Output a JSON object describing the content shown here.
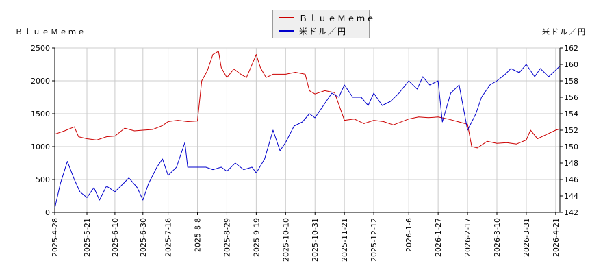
{
  "legend": {
    "series1": "ＢｌｕｅＭｅｍｅ",
    "series2": "米ドル／円"
  },
  "left_axis_title": "ＢｌｕｅＭｅｍｅ",
  "right_axis_title": "米ドル／円",
  "colors": {
    "series1": "#cc0000",
    "series2": "#0000cc",
    "grid": "#cccccc"
  },
  "chart_data": {
    "type": "line",
    "title": "",
    "left_axis": {
      "label": "ＢｌｕｅＭｅｍｅ",
      "ylim": [
        0,
        2500
      ],
      "ticks": [
        "0",
        "500",
        "1000",
        "1500",
        "2000",
        "2500"
      ]
    },
    "right_axis": {
      "label": "米ドル／円",
      "ylim": [
        142,
        162
      ],
      "ticks": [
        "142",
        "144",
        "146",
        "148",
        "150",
        "152",
        "154",
        "156",
        "158",
        "160",
        "162"
      ]
    },
    "x_axis": {
      "range": [
        "2025-4-28",
        "2026-4-24"
      ],
      "ticks": [
        "2025-4-28",
        "2025-5-21",
        "2025-6-10",
        "2025-6-30",
        "2025-7-18",
        "2025-8-8",
        "2025-8-29",
        "2025-9-19",
        "2025-10-10",
        "2025-10-31",
        "2025-11-21",
        "2025-12-12",
        "2026-1-6",
        "2026-1-27",
        "2026-2-17",
        "2026-3-10",
        "2026-3-31",
        "2026-4-21"
      ]
    },
    "grid": true,
    "legend_position": "top-center",
    "series": [
      {
        "name": "ＢｌｕｅＭｅｍｅ",
        "axis": "left",
        "x": [
          "2025-4-28",
          "2025-5-5",
          "2025-5-12",
          "2025-5-15",
          "2025-5-21",
          "2025-5-28",
          "2025-6-4",
          "2025-6-10",
          "2025-6-17",
          "2025-6-24",
          "2025-6-30",
          "2025-7-7",
          "2025-7-14",
          "2025-7-18",
          "2025-7-25",
          "2025-8-1",
          "2025-8-8",
          "2025-8-11",
          "2025-8-15",
          "2025-8-19",
          "2025-8-23",
          "2025-8-25",
          "2025-8-29",
          "2025-9-3",
          "2025-9-8",
          "2025-9-12",
          "2025-9-19",
          "2025-9-22",
          "2025-9-26",
          "2025-10-1",
          "2025-10-10",
          "2025-10-17",
          "2025-10-24",
          "2025-10-27",
          "2025-10-31",
          "2025-11-7",
          "2025-11-14",
          "2025-11-21",
          "2025-11-28",
          "2025-12-5",
          "2025-12-12",
          "2025-12-19",
          "2025-12-26",
          "2026-1-6",
          "2026-1-13",
          "2026-1-20",
          "2026-1-27",
          "2026-2-3",
          "2026-2-10",
          "2026-2-17",
          "2026-2-20",
          "2026-2-24",
          "2026-3-3",
          "2026-3-10",
          "2026-3-17",
          "2026-3-24",
          "2026-3-31",
          "2026-4-3",
          "2026-4-8",
          "2026-4-14",
          "2026-4-21",
          "2026-4-24"
        ],
        "y": [
          1190,
          1240,
          1300,
          1150,
          1120,
          1100,
          1150,
          1160,
          1280,
          1240,
          1250,
          1260,
          1320,
          1380,
          1400,
          1380,
          1390,
          2000,
          2150,
          2400,
          2450,
          2200,
          2050,
          2180,
          2100,
          2050,
          2400,
          2200,
          2050,
          2100,
          2100,
          2130,
          2100,
          1850,
          1800,
          1850,
          1820,
          1400,
          1420,
          1350,
          1400,
          1380,
          1330,
          1420,
          1450,
          1440,
          1450,
          1420,
          1380,
          1340,
          1000,
          980,
          1080,
          1050,
          1060,
          1040,
          1100,
          1250,
          1120,
          1180,
          1250,
          1270
        ]
      },
      {
        "name": "米ドル／円",
        "axis": "right",
        "x": [
          "2025-4-28",
          "2025-5-2",
          "2025-5-7",
          "2025-5-12",
          "2025-5-16",
          "2025-5-21",
          "2025-5-26",
          "2025-5-30",
          "2025-6-4",
          "2025-6-10",
          "2025-6-16",
          "2025-6-20",
          "2025-6-26",
          "2025-6-30",
          "2025-7-4",
          "2025-7-10",
          "2025-7-14",
          "2025-7-18",
          "2025-7-24",
          "2025-7-30",
          "2025-8-1",
          "2025-8-8",
          "2025-8-14",
          "2025-8-19",
          "2025-8-25",
          "2025-8-29",
          "2025-9-4",
          "2025-9-10",
          "2025-9-16",
          "2025-9-19",
          "2025-9-25",
          "2025-10-1",
          "2025-10-6",
          "2025-10-10",
          "2025-10-16",
          "2025-10-22",
          "2025-10-27",
          "2025-10-31",
          "2025-11-6",
          "2025-11-12",
          "2025-11-17",
          "2025-11-21",
          "2025-11-27",
          "2025-12-3",
          "2025-12-8",
          "2025-12-12",
          "2025-12-18",
          "2025-12-24",
          "2025-12-30",
          "2026-1-6",
          "2026-1-12",
          "2026-1-16",
          "2026-1-21",
          "2026-1-27",
          "2026-1-30",
          "2026-2-5",
          "2026-2-11",
          "2026-2-17",
          "2026-2-23",
          "2026-2-27",
          "2026-3-5",
          "2026-3-10",
          "2026-3-16",
          "2026-3-20",
          "2026-3-26",
          "2026-3-31",
          "2026-4-6",
          "2026-4-10",
          "2026-4-16",
          "2026-4-21",
          "2026-4-24"
        ],
        "y": [
          142.5,
          145.5,
          148.2,
          146.0,
          144.5,
          143.8,
          145.0,
          143.5,
          145.2,
          144.5,
          145.5,
          146.2,
          145.0,
          143.5,
          145.5,
          147.5,
          148.5,
          146.5,
          147.5,
          150.5,
          147.5,
          147.5,
          147.5,
          147.2,
          147.5,
          147.0,
          148.0,
          147.2,
          147.5,
          146.8,
          148.5,
          152.0,
          149.5,
          150.5,
          152.5,
          153.0,
          154.0,
          153.5,
          155.0,
          156.5,
          156.0,
          157.5,
          156.0,
          156.0,
          155.0,
          156.5,
          155.0,
          155.5,
          156.5,
          158.0,
          157.0,
          158.5,
          157.5,
          158.0,
          153.0,
          156.5,
          157.5,
          152.0,
          154.0,
          156.0,
          157.5,
          158.0,
          158.8,
          159.5,
          159.0,
          160.0,
          158.5,
          159.5,
          158.5,
          159.3,
          159.8
        ]
      }
    ]
  }
}
